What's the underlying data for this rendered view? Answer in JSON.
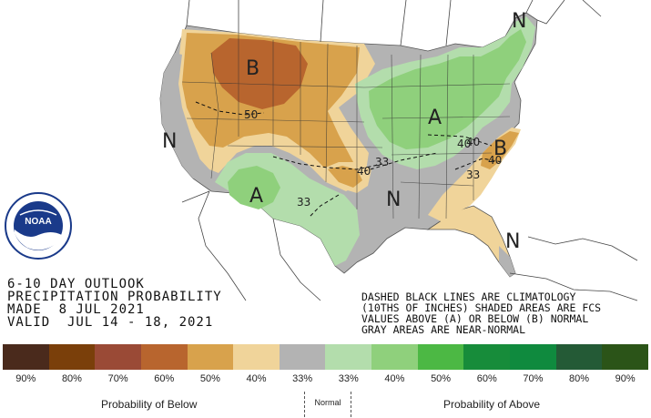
{
  "title": {
    "line1": "6-10 DAY OUTLOOK",
    "line2": "PRECIPITATION PROBABILITY",
    "line3": "MADE  8 JUL 2021",
    "line4": "VALID  JUL 14 - 18, 2021"
  },
  "notes": {
    "line1": "DASHED BLACK LINES ARE CLIMATOLOGY",
    "line2": "(10THS OF INCHES) SHADED AREAS ARE FCS",
    "line3": "VALUES ABOVE (A) OR BELOW (B) NORMAL",
    "line4": "GRAY AREAS ARE NEAR-NORMAL"
  },
  "logo": {
    "text": "NOAA",
    "ring_text": "NATIONAL OCEANIC AND ATMOSPHERIC ADMINISTRATION"
  },
  "map_labels": {
    "b_northwest": "B",
    "a_southwest": "A",
    "a_northeast": "A",
    "b_southeast": "B",
    "n_west": "N",
    "n_south": "N",
    "n_northeast": "N",
    "n_florida": "N"
  },
  "contour_labels": {
    "c1": "50",
    "c2": "33",
    "c3": "40",
    "c4": "40",
    "c5": "33",
    "c6": "33",
    "c7": "40",
    "c8": "40"
  },
  "legend": {
    "values": [
      "90%",
      "80%",
      "70%",
      "60%",
      "50%",
      "40%",
      "33%",
      "33%",
      "40%",
      "50%",
      "60%",
      "70%",
      "80%",
      "90%"
    ],
    "colors": [
      "#4a2a1c",
      "#7a3f0a",
      "#9a4a36",
      "#b8652e",
      "#d8a24c",
      "#f0d49a",
      "#b3b3b3",
      "#b3ddac",
      "#8fd07c",
      "#4cb844",
      "#178c3a",
      "#0f8a3e",
      "#245a36",
      "#2b5418"
    ],
    "below_caption": "Probability of Below",
    "normal_caption": "Normal",
    "above_caption": "Probability of Above"
  },
  "colors": {
    "below_60": "#b8652e",
    "below_50": "#d8a24c",
    "below_40": "#f0d49a",
    "normal": "#b3b3b3",
    "above_40": "#b3ddac",
    "above_50": "#8fd07c"
  }
}
